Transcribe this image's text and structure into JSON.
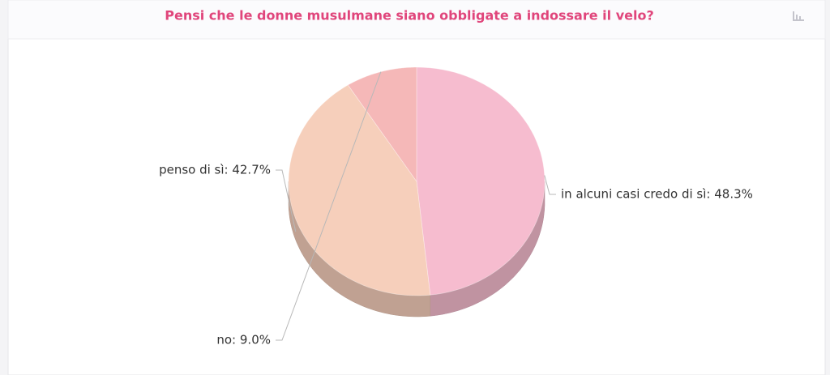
{
  "chart_data": {
    "type": "pie",
    "title": "Pensi che le donne musulmane siano obbligate a indossare il velo?",
    "values": [
      48.3,
      42.7,
      9.0
    ],
    "value_labels": [
      "in alcuni casi credo di sì: 48.3%",
      "penso di sì: 42.7%",
      "no: 9.0%"
    ],
    "colors": [
      "#f6bccf",
      "#f6cfbb",
      "#f5b8b8"
    ]
  }
}
